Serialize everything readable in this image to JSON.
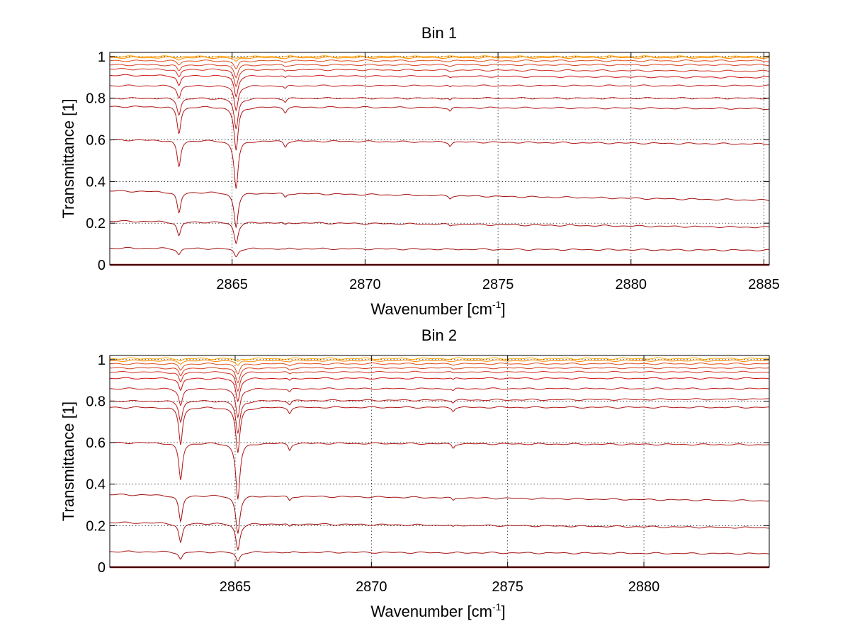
{
  "chart_data": [
    {
      "type": "line",
      "title": "Bin 1",
      "xlabel": "Wavenumber [cm",
      "xlabel_sup": "-1",
      "xlabel_close": "]",
      "ylabel": "Transmittance [1]",
      "xlim": [
        2860.4,
        2885.2
      ],
      "ylim": [
        0,
        1.02
      ],
      "xticks": [
        2865,
        2870,
        2875,
        2880,
        2885
      ],
      "xtick_labels": [
        "2865",
        "2870",
        "2875",
        "2880",
        "2885"
      ],
      "yticks": [
        0,
        0.2,
        0.4,
        0.6,
        0.8,
        1
      ],
      "ytick_labels": [
        "0",
        "0.2",
        "0.4",
        "0.6",
        "0.8",
        "1"
      ],
      "grid": true,
      "absorption_lines": [
        {
          "x": 2863.0,
          "width": 0.08
        },
        {
          "x": 2865.15,
          "width": 0.09
        },
        {
          "x": 2867.0,
          "width": 0.06
        },
        {
          "x": 2873.2,
          "width": 0.05
        }
      ],
      "series": [
        {
          "baseline": 0.0,
          "end": 0.0,
          "min_at_2863": 0.0,
          "min_at_2865": 0.0,
          "color": "#8b0000"
        },
        {
          "baseline": 0.08,
          "end": 0.07,
          "min_at_2863": 0.05,
          "min_at_2865": 0.04,
          "color": "#a31010"
        },
        {
          "baseline": 0.21,
          "end": 0.18,
          "min_at_2863": 0.14,
          "min_at_2865": 0.11,
          "color": "#a31010"
        },
        {
          "baseline": 0.355,
          "end": 0.31,
          "min_at_2863": 0.25,
          "min_at_2865": 0.19,
          "color": "#a31010"
        },
        {
          "baseline": 0.6,
          "end": 0.58,
          "min_at_2863": 0.47,
          "min_at_2865": 0.37,
          "color": "#b01414"
        },
        {
          "baseline": 0.76,
          "end": 0.75,
          "min_at_2863": 0.63,
          "min_at_2865": 0.55,
          "color": "#b01414"
        },
        {
          "baseline": 0.8,
          "end": 0.8,
          "min_at_2863": 0.72,
          "min_at_2865": 0.65,
          "color": "#b81818"
        },
        {
          "baseline": 0.86,
          "end": 0.86,
          "min_at_2863": 0.8,
          "min_at_2865": 0.74,
          "color": "#c01c1c"
        },
        {
          "baseline": 0.91,
          "end": 0.9,
          "min_at_2863": 0.86,
          "min_at_2865": 0.81,
          "color": "#d01010"
        },
        {
          "baseline": 0.94,
          "end": 0.93,
          "min_at_2863": 0.9,
          "min_at_2865": 0.86,
          "color": "#d03020"
        },
        {
          "baseline": 0.96,
          "end": 0.96,
          "min_at_2863": 0.93,
          "min_at_2865": 0.9,
          "color": "#d84020"
        },
        {
          "baseline": 0.98,
          "end": 0.98,
          "min_at_2863": 0.96,
          "min_at_2865": 0.94,
          "color": "#e05020"
        },
        {
          "baseline": 0.995,
          "end": 0.995,
          "min_at_2863": 0.985,
          "min_at_2865": 0.975,
          "color": "#ff8c00"
        },
        {
          "baseline": 1.0,
          "end": 1.0,
          "min_at_2863": 0.995,
          "min_at_2865": 0.99,
          "color": "#ffa500"
        }
      ]
    },
    {
      "type": "line",
      "title": "Bin 2",
      "xlabel": "Wavenumber [cm",
      "xlabel_sup": "-1",
      "xlabel_close": "]",
      "ylabel": "Transmittance [1]",
      "xlim": [
        2860.4,
        2884.6
      ],
      "ylim": [
        0,
        1.02
      ],
      "xticks": [
        2865,
        2870,
        2875,
        2880
      ],
      "xtick_labels": [
        "2865",
        "2870",
        "2875",
        "2880"
      ],
      "yticks": [
        0,
        0.2,
        0.4,
        0.6,
        0.8,
        1
      ],
      "ytick_labels": [
        "0",
        "0.2",
        "0.4",
        "0.6",
        "0.8",
        "1"
      ],
      "grid": true,
      "absorption_lines": [
        {
          "x": 2863.0,
          "width": 0.08
        },
        {
          "x": 2865.1,
          "width": 0.09
        },
        {
          "x": 2867.0,
          "width": 0.06
        },
        {
          "x": 2873.0,
          "width": 0.05
        }
      ],
      "series": [
        {
          "baseline": 0.0,
          "end": 0.0,
          "min_at_2863": 0.0,
          "min_at_2865": 0.0,
          "color": "#8b0000"
        },
        {
          "baseline": 0.075,
          "end": 0.065,
          "min_at_2863": 0.04,
          "min_at_2865": 0.03,
          "color": "#a31010"
        },
        {
          "baseline": 0.215,
          "end": 0.19,
          "min_at_2863": 0.12,
          "min_at_2865": 0.09,
          "color": "#a31010"
        },
        {
          "baseline": 0.35,
          "end": 0.32,
          "min_at_2863": 0.22,
          "min_at_2865": 0.17,
          "color": "#a31010"
        },
        {
          "baseline": 0.6,
          "end": 0.59,
          "min_at_2863": 0.42,
          "min_at_2865": 0.33,
          "color": "#b01414"
        },
        {
          "baseline": 0.77,
          "end": 0.77,
          "min_at_2863": 0.59,
          "min_at_2865": 0.55,
          "color": "#b01414"
        },
        {
          "baseline": 0.8,
          "end": 0.81,
          "min_at_2863": 0.7,
          "min_at_2865": 0.64,
          "color": "#b81818"
        },
        {
          "baseline": 0.86,
          "end": 0.86,
          "min_at_2863": 0.78,
          "min_at_2865": 0.72,
          "color": "#c01c1c"
        },
        {
          "baseline": 0.91,
          "end": 0.91,
          "min_at_2863": 0.85,
          "min_at_2865": 0.8,
          "color": "#d01010"
        },
        {
          "baseline": 0.94,
          "end": 0.94,
          "min_at_2863": 0.89,
          "min_at_2865": 0.85,
          "color": "#d03020"
        },
        {
          "baseline": 0.96,
          "end": 0.96,
          "min_at_2863": 0.92,
          "min_at_2865": 0.89,
          "color": "#d84020"
        },
        {
          "baseline": 0.98,
          "end": 0.98,
          "min_at_2863": 0.95,
          "min_at_2865": 0.93,
          "color": "#e05020"
        },
        {
          "baseline": 0.995,
          "end": 0.995,
          "min_at_2863": 0.98,
          "min_at_2865": 0.97,
          "color": "#ff8c00"
        },
        {
          "baseline": 1.005,
          "end": 1.005,
          "min_at_2863": 0.995,
          "min_at_2865": 0.99,
          "color": "#ffa500"
        }
      ]
    }
  ]
}
